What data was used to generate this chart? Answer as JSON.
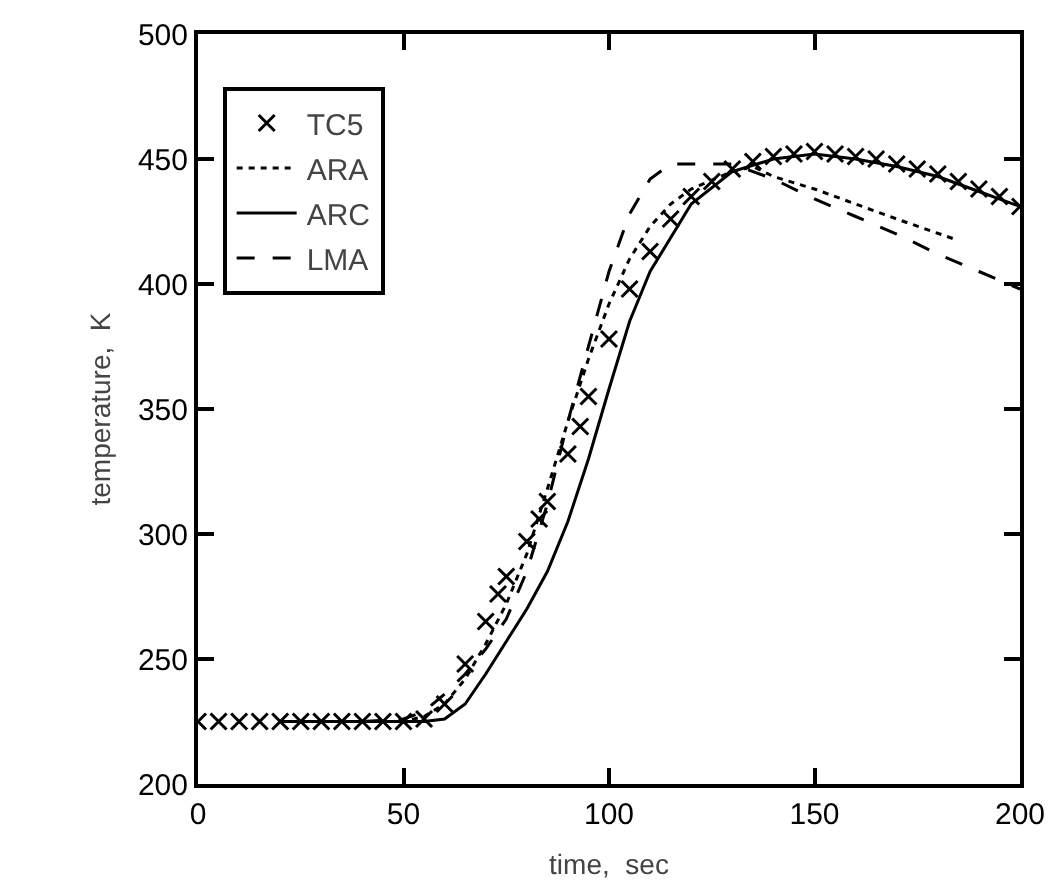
{
  "chart_data": {
    "type": "line",
    "xlabel": "time,  sec",
    "ylabel": "temperature,  K",
    "xlim": [
      0,
      200
    ],
    "ylim": [
      200,
      500
    ],
    "xticks": [
      0,
      50,
      100,
      150,
      200
    ],
    "yticks": [
      200,
      250,
      300,
      350,
      400,
      450,
      500
    ],
    "grid": false,
    "legend": "top left",
    "series": [
      {
        "name": "TC5",
        "type": "scatter",
        "marker": "cross",
        "color": "#000000",
        "x": [
          0,
          5,
          10,
          15,
          20,
          25,
          30,
          35,
          40,
          45,
          50,
          55,
          60,
          65,
          70,
          73,
          75,
          80,
          83,
          85,
          90,
          93,
          95,
          100,
          105,
          110,
          115,
          120,
          125,
          130,
          135,
          140,
          145,
          150,
          155,
          160,
          165,
          170,
          175,
          180,
          185,
          190,
          195,
          200
        ],
        "values": [
          225,
          225,
          225,
          225,
          225,
          225,
          225,
          225,
          225,
          225,
          225,
          226,
          232,
          248,
          265,
          276,
          283,
          297,
          306,
          313,
          332,
          343,
          355,
          378,
          398,
          413,
          426,
          435,
          441,
          446,
          449,
          451,
          452,
          453,
          452,
          451,
          450,
          448,
          446,
          444,
          441,
          438,
          435,
          431
        ]
      },
      {
        "name": "ARA",
        "line_style": "dotted",
        "color": "#000000",
        "x": [
          20,
          50,
          55,
          60,
          65,
          70,
          75,
          80,
          85,
          90,
          95,
          100,
          105,
          110,
          115,
          120,
          130,
          135,
          140,
          150,
          160,
          170,
          184
        ],
        "values": [
          225,
          225,
          227,
          232,
          242,
          256,
          272,
          292,
          318,
          345,
          370,
          392,
          410,
          423,
          432,
          438,
          445,
          447,
          443,
          438,
          432,
          426,
          418
        ]
      },
      {
        "name": "ARC",
        "line_style": "solid",
        "color": "#000000",
        "x": [
          20,
          50,
          55,
          60,
          65,
          70,
          75,
          80,
          85,
          90,
          95,
          100,
          105,
          110,
          120,
          130,
          140,
          150,
          160,
          170,
          180,
          190,
          200
        ],
        "values": [
          225,
          225,
          225,
          226,
          232,
          244,
          257,
          270,
          285,
          305,
          330,
          358,
          385,
          405,
          432,
          445,
          450,
          452,
          450,
          447,
          443,
          437,
          431
        ]
      },
      {
        "name": "LMA",
        "line_style": "dashed",
        "color": "#000000",
        "x": [
          40,
          50,
          55,
          60,
          65,
          70,
          75,
          80,
          85,
          90,
          95,
          100,
          105,
          110,
          115,
          130,
          140,
          150,
          160,
          170,
          180,
          190,
          200
        ],
        "values": [
          225,
          226,
          229,
          236,
          244,
          254,
          266,
          285,
          312,
          345,
          375,
          405,
          428,
          442,
          448,
          448,
          442,
          434,
          427,
          420,
          412,
          405,
          398
        ]
      }
    ]
  }
}
